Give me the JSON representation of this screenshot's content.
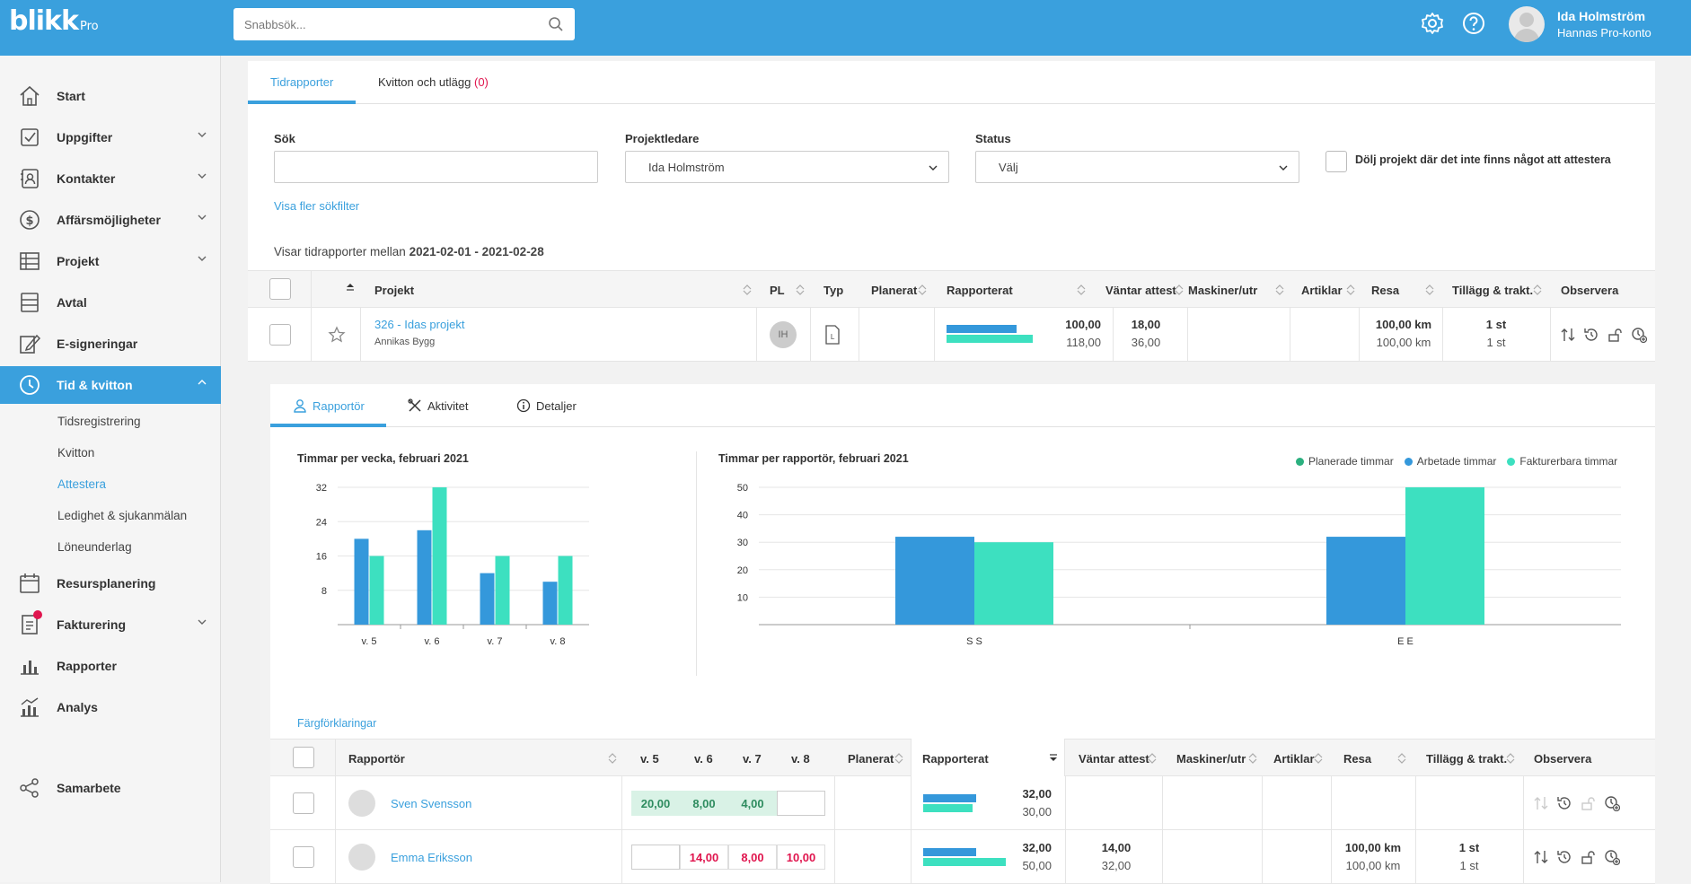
{
  "app": {
    "logo": "blikk",
    "logo_suffix": "Pro"
  },
  "search": {
    "placeholder": "Snabbsök..."
  },
  "user": {
    "name": "Ida Holmström",
    "account": "Hannas Pro-konto"
  },
  "sidebar": {
    "items": [
      {
        "label": "Start"
      },
      {
        "label": "Uppgifter"
      },
      {
        "label": "Kontakter"
      },
      {
        "label": "Affärsmöjligheter"
      },
      {
        "label": "Projekt"
      },
      {
        "label": "Avtal"
      },
      {
        "label": "E-signeringar"
      },
      {
        "label": "Tid & kvitton"
      },
      {
        "label": "Resursplanering"
      },
      {
        "label": "Fakturering"
      },
      {
        "label": "Rapporter"
      },
      {
        "label": "Analys"
      },
      {
        "label": "Samarbete"
      }
    ],
    "subitems": [
      {
        "label": "Tidsregistrering"
      },
      {
        "label": "Kvitton"
      },
      {
        "label": "Attestera"
      },
      {
        "label": "Ledighet & sjukanmälan"
      },
      {
        "label": "Löneunderlag"
      }
    ]
  },
  "tabs": {
    "tidrapporter": "Tidrapporter",
    "kvitton": "Kvitton och utlägg",
    "kvitton_count": "(0)"
  },
  "filters": {
    "sok_label": "Sök",
    "sok_value": "",
    "pl_label": "Projektledare",
    "pl_value": "Ida Holmström",
    "status_label": "Status",
    "status_value": "Välj",
    "hide_label": "Dölj projekt där det inte finns något att attestera",
    "more_filters": "Visa fler sökfilter"
  },
  "period": {
    "prefix": "Visar tidrapporter mellan",
    "range": "2021-02-01 - 2021-02-28"
  },
  "project_table": {
    "headers": [
      "Projekt",
      "PL",
      "Typ",
      "Planerat",
      "Rapporterat",
      "Väntar attest",
      "Maskiner/utr",
      "Artiklar",
      "Resa",
      "Tillägg & trakt.",
      "Observera"
    ],
    "row": {
      "name": "326 - Idas projekt",
      "customer": "Annikas Bygg",
      "pl": "IH",
      "rapporterat_1": "100,00",
      "rapporterat_2": "118,00",
      "vantar_1": "18,00",
      "vantar_2": "36,00",
      "resa_1": "100,00 km",
      "resa_2": "100,00 km",
      "tillagg_1": "1 st",
      "tillagg_2": "1 st"
    }
  },
  "detail_tabs": {
    "rapportor": "Rapportör",
    "aktivitet": "Aktivitet",
    "detaljer": "Detaljer"
  },
  "chart_data": [
    {
      "type": "bar",
      "title": "Timmar per vecka, februari 2021",
      "categories": [
        "v. 5",
        "v. 6",
        "v. 7",
        "v. 8"
      ],
      "yticks": [
        8,
        16,
        24,
        32
      ],
      "ylim": [
        0,
        32
      ],
      "series": [
        {
          "values": [
            20,
            22,
            12,
            10
          ],
          "color": "#3498db"
        },
        {
          "values": [
            16,
            32,
            16,
            16
          ],
          "color": "#3de0c0"
        }
      ]
    },
    {
      "type": "bar",
      "title": "Timmar per rapportör, februari 2021",
      "categories": [
        "S S",
        "E E"
      ],
      "yticks": [
        10,
        20,
        30,
        40,
        50
      ],
      "ylim": [
        0,
        50
      ],
      "legend": [
        "Planerade timmar",
        "Arbetade timmar",
        "Fakturerbara timmar"
      ],
      "legend_colors": [
        "#2bb07f",
        "#3498db",
        "#3de0c0"
      ],
      "series": [
        {
          "name": "Planerade timmar",
          "values": [
            0,
            0
          ],
          "color": "#2bb07f"
        },
        {
          "name": "Arbetade timmar",
          "values": [
            32,
            32
          ],
          "color": "#3498db"
        },
        {
          "name": "Fakturerbara timmar",
          "values": [
            30,
            50
          ],
          "color": "#3de0c0"
        }
      ]
    }
  ],
  "color_legend_link": "Färgförklaringar",
  "reporter_table": {
    "headers": [
      "Rapportör",
      "v. 5",
      "v. 6",
      "v. 7",
      "v. 8",
      "Planerat",
      "Rapporterat",
      "Väntar attest",
      "Maskiner/utr",
      "Artiklar",
      "Resa",
      "Tillägg & trakt.",
      "Observera"
    ],
    "rows": [
      {
        "name": "Sven Svensson",
        "v5": "20,00",
        "v6": "8,00",
        "v7": "4,00",
        "v8": "",
        "rap_1": "32,00",
        "rap_2": "30,00",
        "vant_1": "",
        "vant_2": "",
        "resa_1": "",
        "resa_2": "",
        "till_1": "",
        "till_2": ""
      },
      {
        "name": "Emma Eriksson",
        "v5": "",
        "v6": "14,00",
        "v7": "8,00",
        "v8": "10,00",
        "rap_1": "32,00",
        "rap_2": "50,00",
        "vant_1": "14,00",
        "vant_2": "32,00",
        "resa_1": "100,00 km",
        "resa_2": "100,00 km",
        "till_1": "1 st",
        "till_2": "1 st"
      }
    ]
  },
  "colors": {
    "brand": "#3aa0dd",
    "worked": "#3498db",
    "billable": "#3de0c0",
    "planned": "#2bb07f",
    "alert": "#e0154e"
  }
}
